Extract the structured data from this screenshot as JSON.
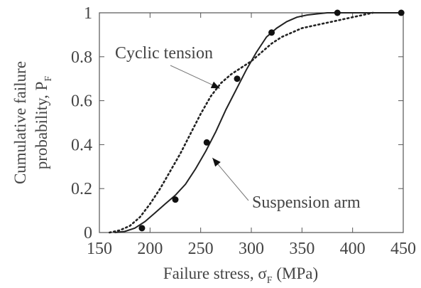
{
  "chart_data": {
    "type": "line",
    "title": "",
    "xlabel": "Failure stress, σ_F (MPa)",
    "xlabel_parts": {
      "main": "Failure stress, σ",
      "sub": "F",
      "unit": " (MPa)"
    },
    "ylabel_line1": "Cumulative failure",
    "ylabel_line2_parts": {
      "main": "probability, P",
      "sub": "F"
    },
    "xlim": [
      150,
      450
    ],
    "ylim": [
      0,
      1
    ],
    "x_ticks": [
      150,
      200,
      250,
      300,
      350,
      400,
      450
    ],
    "y_ticks": [
      0,
      0.2,
      0.4,
      0.6,
      0.8,
      1
    ],
    "y_tick_labels": [
      "0",
      "0.2",
      "0.4",
      "0.6",
      "0.8",
      "1"
    ],
    "grid": false,
    "series": [
      {
        "name": "Cyclic tension",
        "style": "dotted",
        "color": "#222222",
        "points": [
          [
            160,
            0
          ],
          [
            170,
            0.01
          ],
          [
            180,
            0.03
          ],
          [
            190,
            0.07
          ],
          [
            200,
            0.13
          ],
          [
            210,
            0.2
          ],
          [
            220,
            0.28
          ],
          [
            230,
            0.36
          ],
          [
            240,
            0.45
          ],
          [
            250,
            0.54
          ],
          [
            260,
            0.62
          ],
          [
            270,
            0.68
          ],
          [
            280,
            0.72
          ],
          [
            290,
            0.75
          ],
          [
            300,
            0.78
          ],
          [
            310,
            0.82
          ],
          [
            320,
            0.86
          ],
          [
            330,
            0.89
          ],
          [
            340,
            0.91
          ],
          [
            350,
            0.93
          ],
          [
            360,
            0.94
          ],
          [
            370,
            0.95
          ],
          [
            380,
            0.96
          ],
          [
            390,
            0.97
          ],
          [
            400,
            0.98
          ],
          [
            410,
            0.99
          ],
          [
            420,
            1
          ]
        ]
      },
      {
        "name": "Suspension arm",
        "style": "solid",
        "color": "#222222",
        "points": [
          [
            165,
            0
          ],
          [
            175,
            0.005
          ],
          [
            185,
            0.02
          ],
          [
            195,
            0.05
          ],
          [
            205,
            0.09
          ],
          [
            215,
            0.13
          ],
          [
            225,
            0.17
          ],
          [
            235,
            0.22
          ],
          [
            245,
            0.29
          ],
          [
            255,
            0.37
          ],
          [
            265,
            0.46
          ],
          [
            275,
            0.56
          ],
          [
            285,
            0.65
          ],
          [
            295,
            0.74
          ],
          [
            305,
            0.82
          ],
          [
            315,
            0.89
          ],
          [
            325,
            0.93
          ],
          [
            335,
            0.96
          ],
          [
            345,
            0.98
          ],
          [
            355,
            0.99
          ],
          [
            365,
            0.995
          ],
          [
            375,
            1
          ],
          [
            385,
            1
          ],
          [
            395,
            1
          ],
          [
            405,
            1
          ],
          [
            415,
            1
          ],
          [
            425,
            1
          ],
          [
            435,
            1
          ],
          [
            450,
            1
          ]
        ]
      }
    ],
    "data_points": {
      "x": [
        192,
        225,
        256,
        286,
        320,
        385,
        448
      ],
      "y": [
        0.02,
        0.15,
        0.41,
        0.7,
        0.91,
        1,
        1
      ]
    },
    "annotations": [
      {
        "text": "Cyclic tension",
        "points_to": [
          262,
          0.63
        ]
      },
      {
        "text": "Suspension arm",
        "points_to": [
          256,
          0.34
        ]
      }
    ]
  }
}
